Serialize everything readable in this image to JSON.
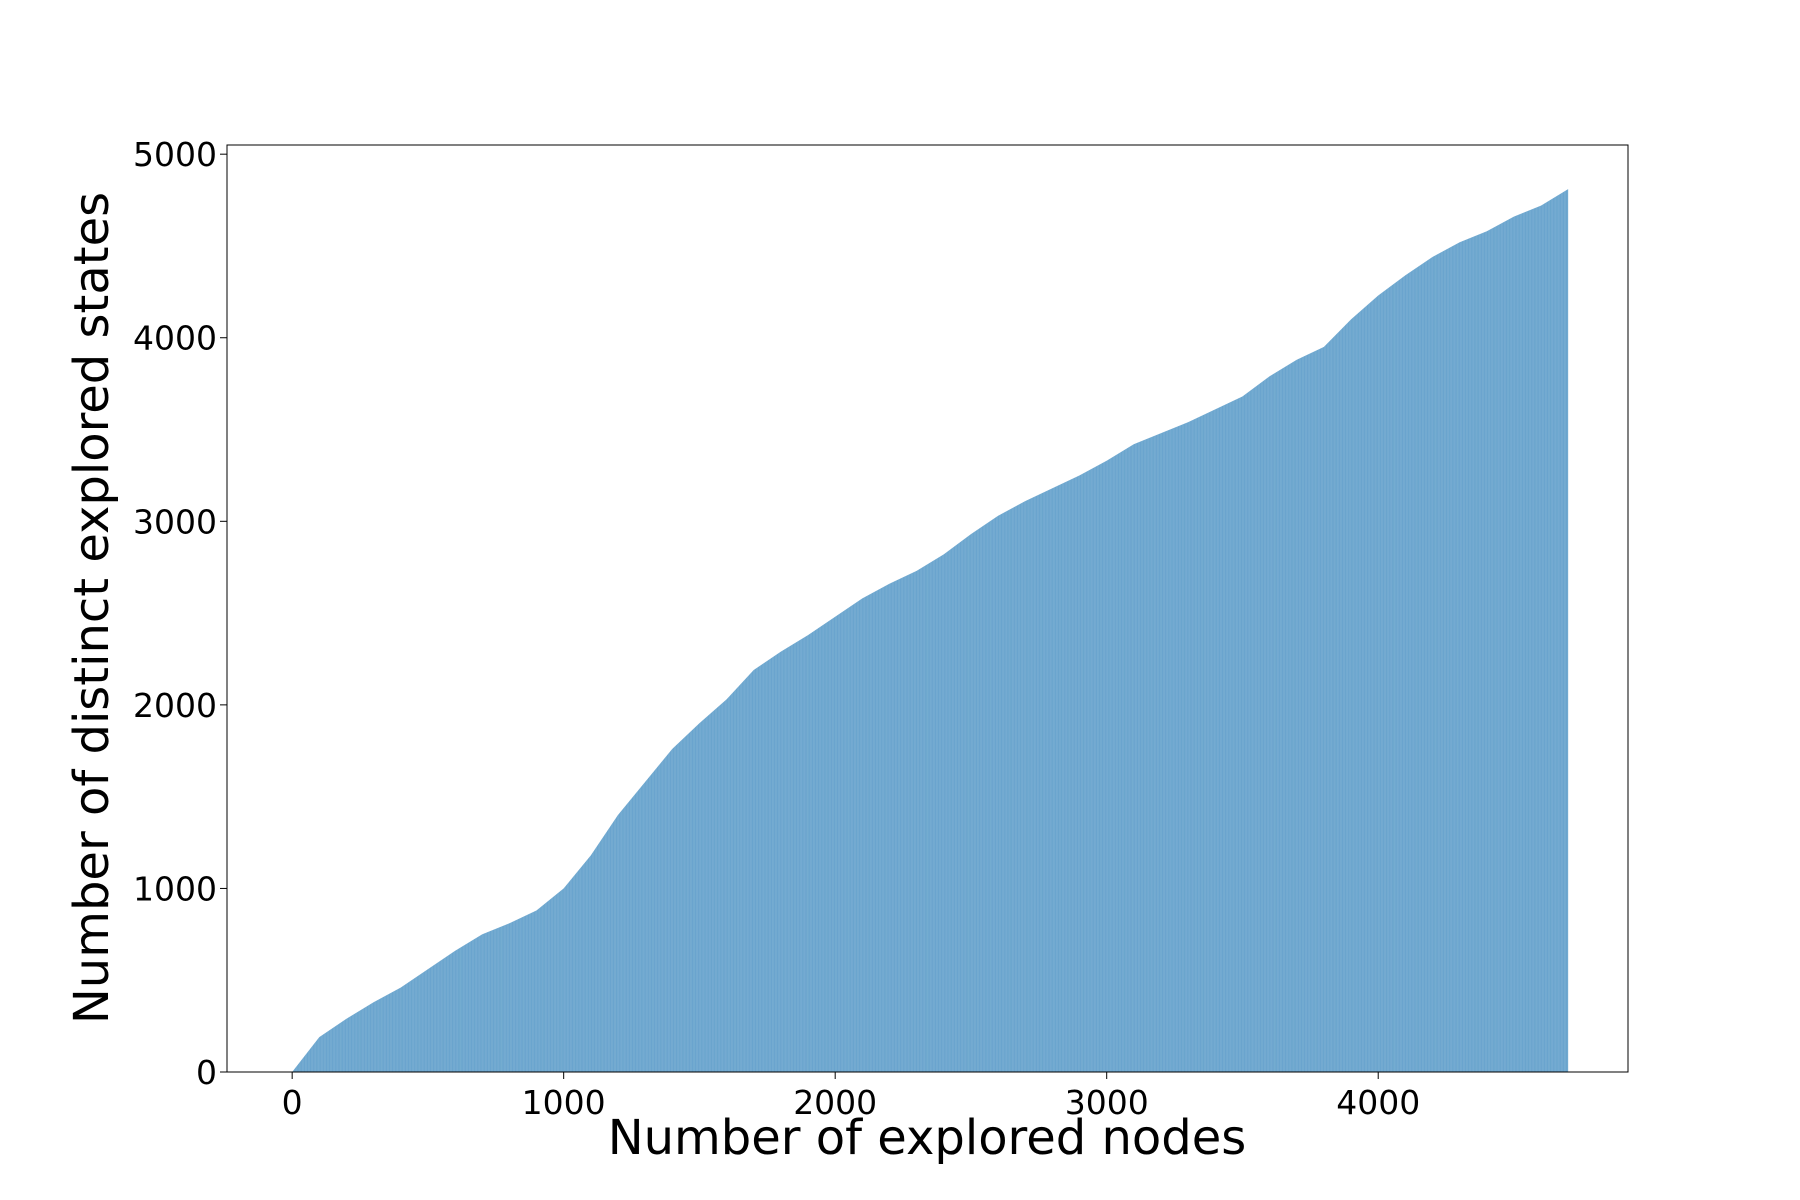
{
  "chart_data": {
    "type": "bar",
    "title": "",
    "xlabel": "Number of explored nodes",
    "ylabel": "Number of distinct explored states",
    "xlim": [
      -240,
      4920
    ],
    "ylim": [
      0,
      5050
    ],
    "x_ticks": [
      0,
      1000,
      2000,
      3000,
      4000
    ],
    "y_ticks": [
      0,
      1000,
      2000,
      3000,
      4000,
      5000
    ],
    "x_tick_labels": [
      "0",
      "1000",
      "2000",
      "3000",
      "4000"
    ],
    "y_tick_labels": [
      "0",
      "1000",
      "2000",
      "3000",
      "4000",
      "5000"
    ],
    "bar_color": "#1f77b4",
    "grid": false,
    "legend": "none",
    "bar_count": 4700,
    "series": [
      {
        "x": [
          0,
          100,
          200,
          300,
          400,
          500,
          600,
          700,
          800,
          900,
          1000,
          1100,
          1200,
          1300,
          1400,
          1500,
          1600,
          1700,
          1800,
          1900,
          2000,
          2100,
          2200,
          2300,
          2400,
          2500,
          2600,
          2700,
          2800,
          2900,
          3000,
          3100,
          3200,
          3300,
          3400,
          3500,
          3600,
          3700,
          3800,
          3900,
          4000,
          4100,
          4200,
          4300,
          4400,
          4500,
          4600,
          4700
        ],
        "values": [
          0,
          190,
          290,
          380,
          460,
          560,
          660,
          750,
          810,
          880,
          1000,
          1180,
          1400,
          1580,
          1760,
          1900,
          2030,
          2190,
          2290,
          2380,
          2480,
          2580,
          2660,
          2730,
          2820,
          2930,
          3030,
          3110,
          3180,
          3250,
          3330,
          3420,
          3480,
          3540,
          3610,
          3680,
          3790,
          3880,
          3950,
          4100,
          4230,
          4340,
          4440,
          4520,
          4580,
          4660,
          4720,
          4810
        ]
      }
    ]
  }
}
